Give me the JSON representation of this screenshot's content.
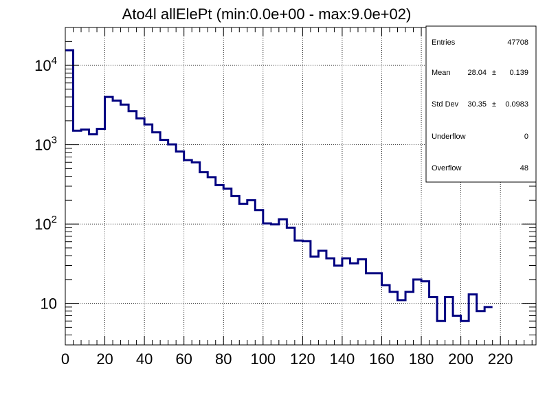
{
  "chart_data": {
    "type": "histogram",
    "title": "Ato4l allElePt (min:0.0e+00 - max:9.0e+02)",
    "xlabel": "",
    "ylabel": "",
    "xlim": [
      0,
      238
    ],
    "ylim": [
      3,
      30000
    ],
    "ylog": true,
    "grid": true,
    "line_color": "#000080",
    "bin_width": 4,
    "bin_edges_start": 0,
    "values": [
      15500,
      1500,
      1550,
      1350,
      1580,
      4000,
      3600,
      3200,
      2650,
      2150,
      1800,
      1430,
      1150,
      1010,
      820,
      640,
      600,
      450,
      390,
      310,
      280,
      225,
      180,
      200,
      150,
      102,
      99,
      115,
      90,
      62,
      61,
      39,
      46,
      37,
      30,
      37,
      32,
      36,
      24,
      24,
      17,
      14,
      11,
      14,
      20,
      19,
      12,
      6,
      12,
      7,
      6,
      13,
      8,
      9
    ],
    "x_ticks": [
      0,
      20,
      40,
      60,
      80,
      100,
      120,
      140,
      160,
      180,
      200,
      220
    ],
    "x_tick_labels": [
      "0",
      "20",
      "40",
      "60",
      "80",
      "100",
      "120",
      "140",
      "160",
      "180",
      "200",
      "220"
    ],
    "y_ticks": [
      10,
      100,
      1000,
      10000
    ],
    "y_tick_labels": [
      {
        "base": "10",
        "exp": ""
      },
      {
        "base": "10",
        "exp": "2"
      },
      {
        "base": "10",
        "exp": "3"
      },
      {
        "base": "10",
        "exp": "4"
      }
    ],
    "stats": {
      "entries_label": "Entries",
      "entries_value": "47708",
      "mean_label": "Mean",
      "mean_value": "28.04",
      "mean_err": "0.139",
      "std_label": "Std Dev",
      "std_value": "30.35",
      "std_err": "0.0983",
      "underflow_label": "Underflow",
      "underflow_value": "0",
      "overflow_label": "Overflow",
      "overflow_value": "48",
      "pm": "±"
    }
  }
}
